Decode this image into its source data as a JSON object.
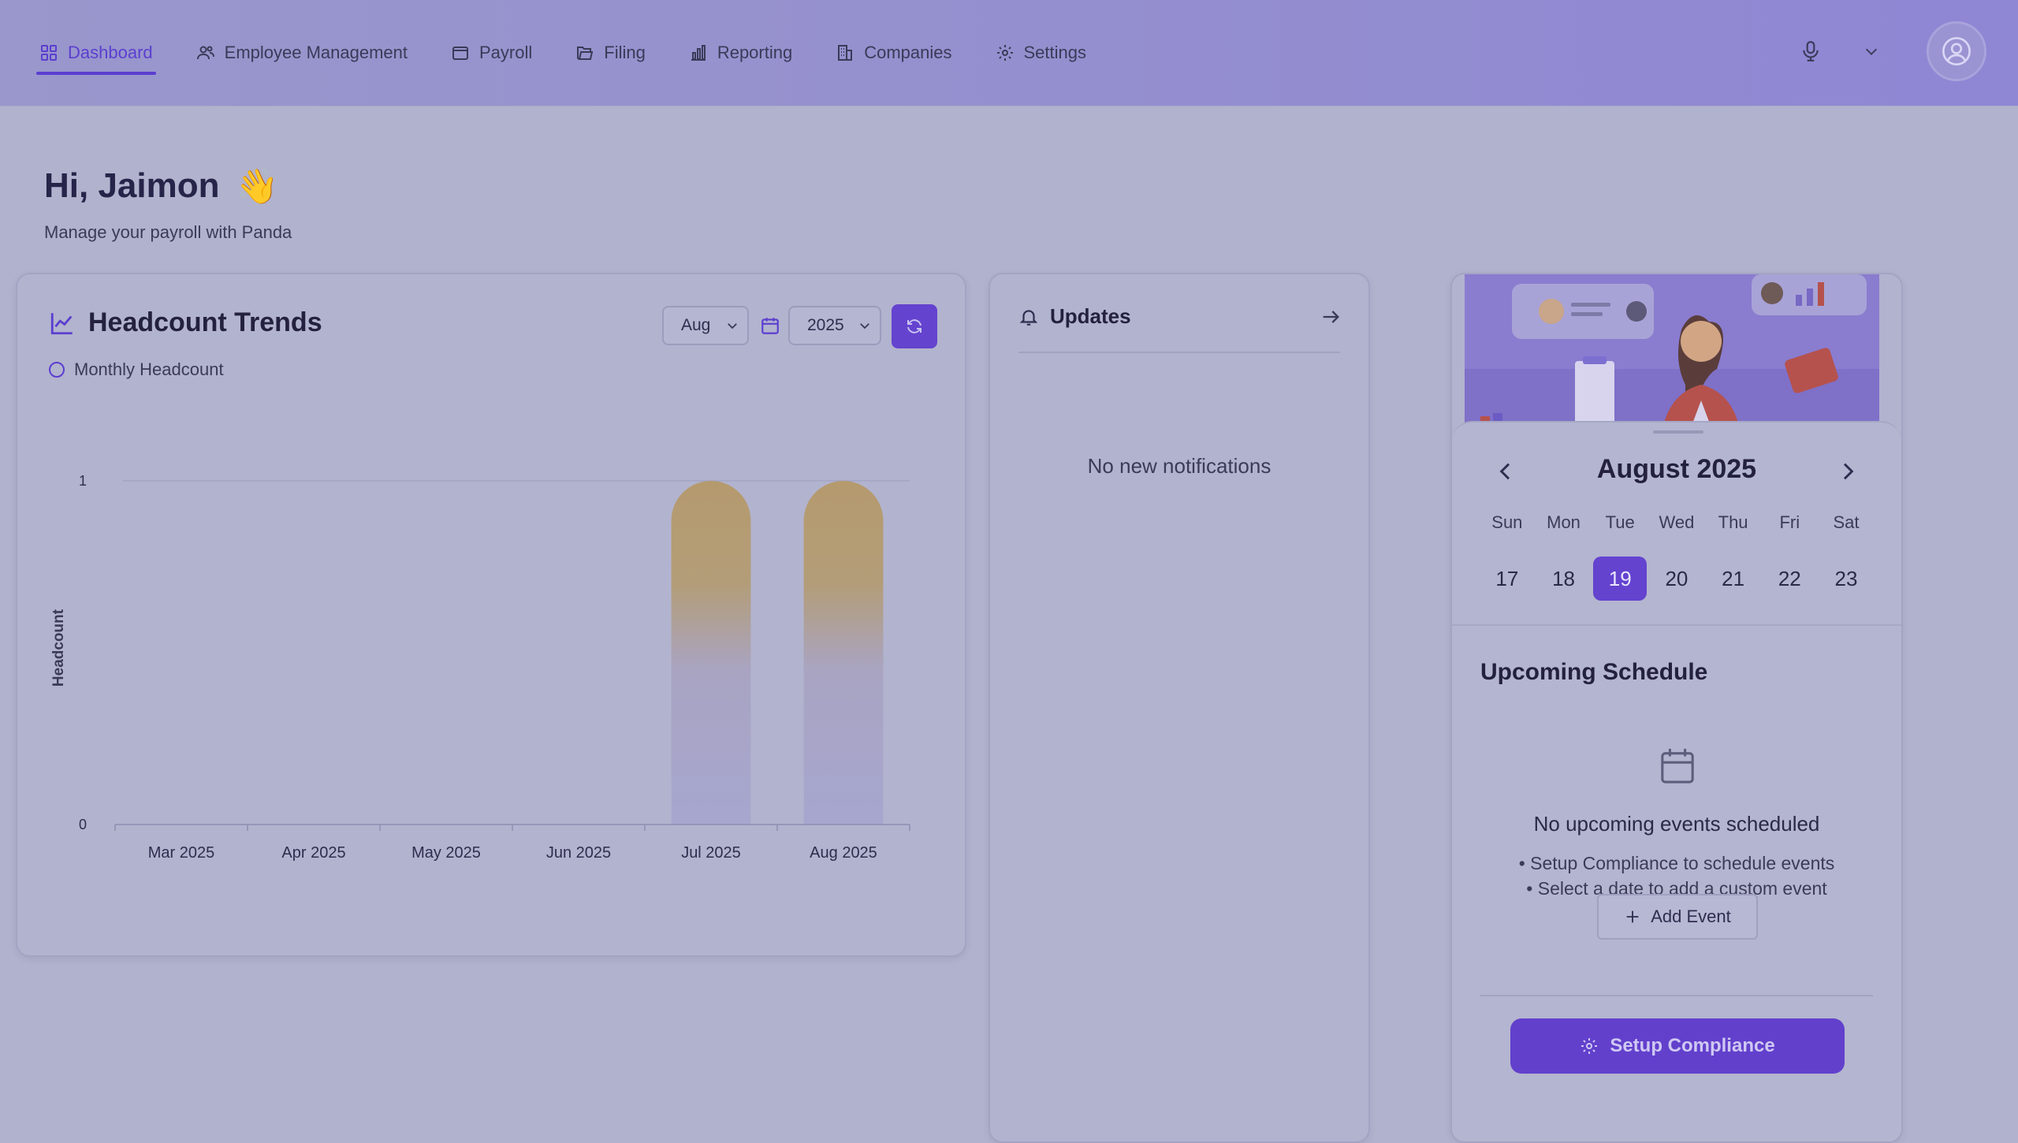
{
  "nav": {
    "items": [
      {
        "label": "Dashboard",
        "icon": "grid-icon",
        "active": true
      },
      {
        "label": "Employee Management",
        "icon": "users-icon"
      },
      {
        "label": "Payroll",
        "icon": "wallet-icon"
      },
      {
        "label": "Filing",
        "icon": "folder-icon"
      },
      {
        "label": "Reporting",
        "icon": "bar-chart-icon"
      },
      {
        "label": "Companies",
        "icon": "building-icon"
      },
      {
        "label": "Settings",
        "icon": "gear-icon"
      }
    ],
    "right_icons": [
      "microphone-icon",
      "chevron-down-icon",
      "user-circle-icon"
    ]
  },
  "greeting": {
    "title": "Hi, Jaimon",
    "emoji": "👋",
    "subtitle": "Manage your payroll with Panda"
  },
  "headcount": {
    "title": "Headcount Trends",
    "legend": "Monthly Headcount",
    "month_select": "Aug",
    "year_select": "2025"
  },
  "chart_data": {
    "type": "bar",
    "title": "Headcount Trends",
    "categories": [
      "Mar 2025",
      "Apr 2025",
      "May 2025",
      "Jun 2025",
      "Jul 2025",
      "Aug 2025"
    ],
    "series": [
      {
        "name": "Monthly Headcount",
        "values": [
          0,
          0,
          0,
          0,
          1,
          1
        ]
      }
    ],
    "xlabel": "",
    "ylabel": "Headcount",
    "yticks": [
      "0",
      "1"
    ],
    "ylim": [
      0,
      1
    ],
    "grid": true,
    "legend_position": "top-left"
  },
  "updates": {
    "title": "Updates",
    "empty_text": "No new notifications"
  },
  "calendar": {
    "month_title": "August 2025",
    "weekdays": [
      "Sun",
      "Mon",
      "Tue",
      "Wed",
      "Thu",
      "Fri",
      "Sat"
    ],
    "days": [
      "17",
      "18",
      "19",
      "20",
      "21",
      "22",
      "23"
    ],
    "selected_day": "19"
  },
  "schedule": {
    "title": "Upcoming Schedule",
    "empty_title": "No upcoming events scheduled",
    "tips": [
      "• Setup Compliance to schedule events",
      "• Select a date to add a custom event"
    ],
    "add_label": "Add Event",
    "setup_label": "Setup Compliance"
  },
  "colors": {
    "accent": "#6443cf",
    "bar_top": "#b59a6e",
    "bar_bottom": "#a6a6cf"
  }
}
